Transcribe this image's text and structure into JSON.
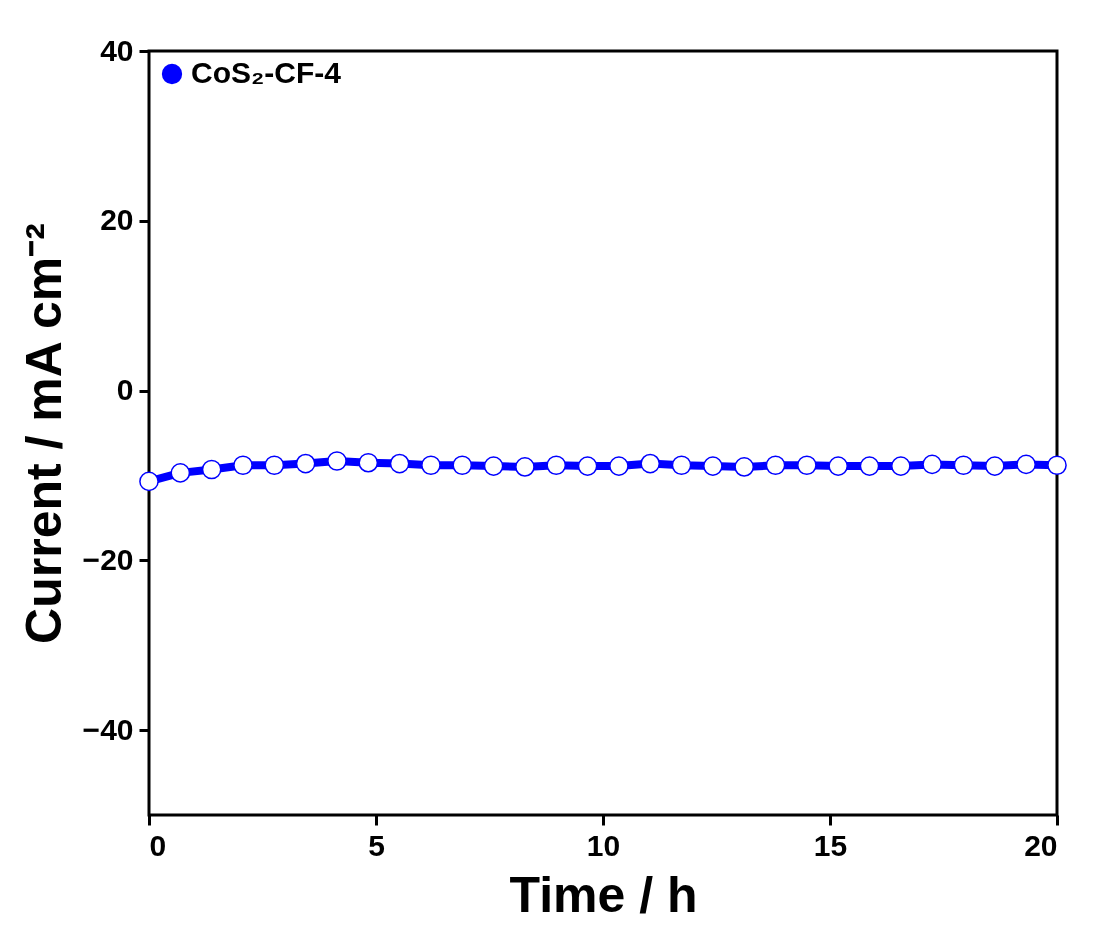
{
  "chart_data": {
    "type": "line",
    "xlabel": "Time / h",
    "ylabel": "Current / mA cm⁻²",
    "x": [
      0,
      0.69,
      1.38,
      2.07,
      2.76,
      3.45,
      4.14,
      4.83,
      5.52,
      6.21,
      6.9,
      7.59,
      8.28,
      8.97,
      9.66,
      10.35,
      11.04,
      11.73,
      12.42,
      13.11,
      13.8,
      14.49,
      15.18,
      15.87,
      16.56,
      17.25,
      17.94,
      18.63,
      19.32,
      20
    ],
    "series": [
      {
        "name": "CoS₂-CF-4",
        "color": "#0000ff",
        "values": [
          -10.7,
          -9.7,
          -9.3,
          -8.8,
          -8.8,
          -8.6,
          -8.3,
          -8.5,
          -8.6,
          -8.8,
          -8.8,
          -8.9,
          -9.0,
          -8.8,
          -8.9,
          -8.9,
          -8.6,
          -8.8,
          -8.9,
          -9.0,
          -8.8,
          -8.8,
          -8.9,
          -8.9,
          -8.9,
          -8.7,
          -8.8,
          -8.9,
          -8.7,
          -8.8
        ]
      }
    ],
    "xlim": [
      0,
      20
    ],
    "xticks": [
      0,
      5,
      10,
      15,
      20
    ],
    "ylim": [
      -50,
      40
    ],
    "yticks": [
      -40,
      -20,
      0,
      20,
      40
    ],
    "legend": "top left",
    "marker": "circle",
    "line_style": "solid",
    "grid": false
  }
}
